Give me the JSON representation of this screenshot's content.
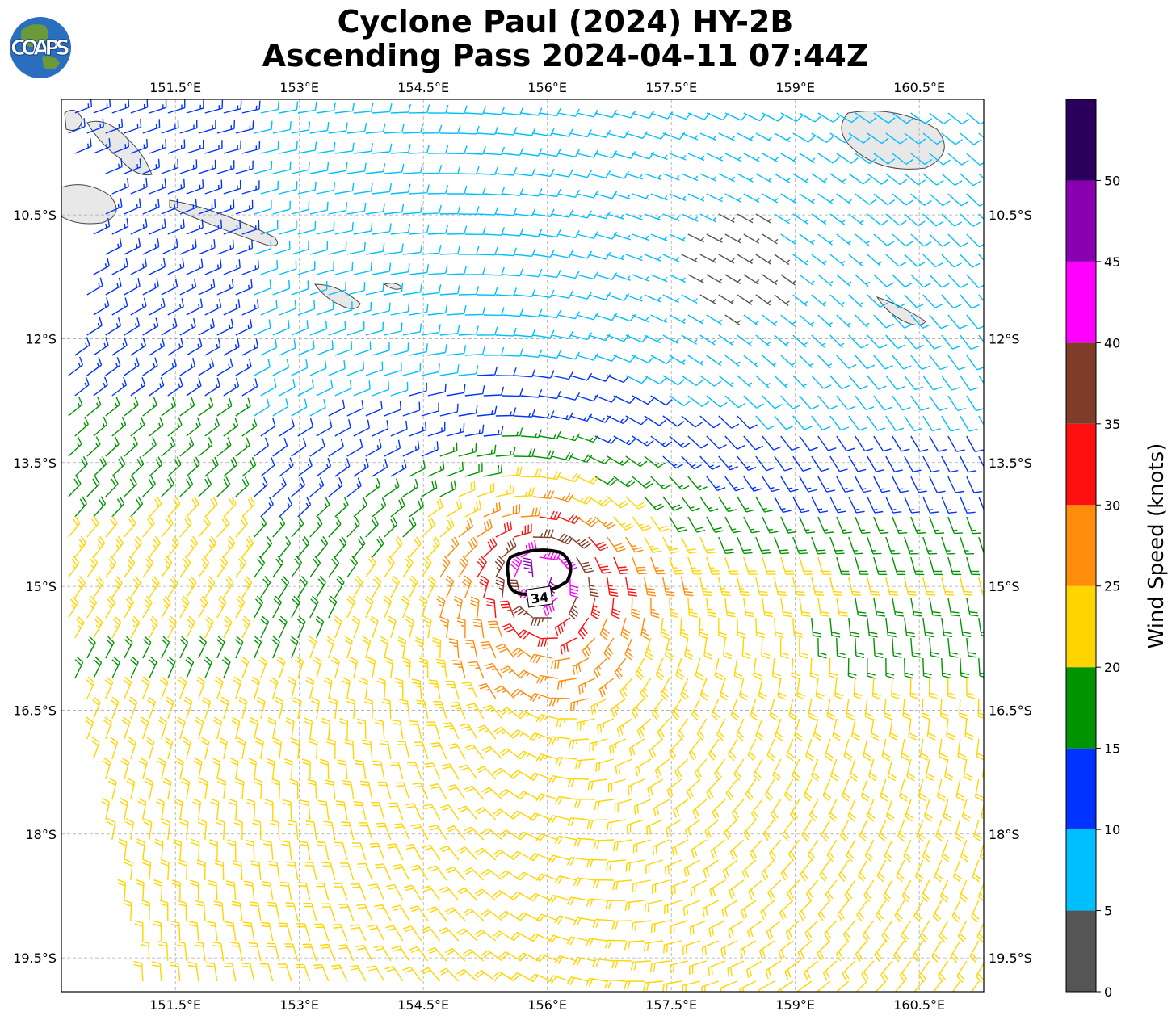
{
  "header": {
    "logo": "COAPS",
    "title_lines": [
      "Cyclone Paul (2024) HY-2B",
      "Ascending Pass 2024-04-11 07:44Z"
    ]
  },
  "map": {
    "xlim": [
      150.12,
      161.28
    ],
    "ylim": [
      -19.91,
      -9.1
    ],
    "lon_ticks": [
      {
        "value": 151.5,
        "label": "151.5°E"
      },
      {
        "value": 153,
        "label": "153°E"
      },
      {
        "value": 154.5,
        "label": "154.5°E"
      },
      {
        "value": 156,
        "label": "156°E"
      },
      {
        "value": 157.5,
        "label": "157.5°E"
      },
      {
        "value": 159,
        "label": "159°E"
      },
      {
        "value": 160.5,
        "label": "160.5°E"
      }
    ],
    "lat_ticks": [
      {
        "value": -10.5,
        "label": "10.5°S"
      },
      {
        "value": -12,
        "label": "12°S"
      },
      {
        "value": -13.5,
        "label": "13.5°S"
      },
      {
        "value": -15,
        "label": "15°S"
      },
      {
        "value": -16.5,
        "label": "16.5°S"
      },
      {
        "value": -18,
        "label": "18°S"
      },
      {
        "value": -19.5,
        "label": "19.5°S"
      }
    ],
    "contour_label": "34",
    "grid": true
  },
  "colorbar": {
    "label": "Wind Speed (knots)",
    "lim": [
      0,
      55
    ],
    "levels": [
      0,
      5,
      10,
      15,
      20,
      25,
      30,
      35,
      40,
      45,
      50,
      55
    ],
    "colors": [
      "#555555",
      "#00bfff",
      "#0033ff",
      "#009400",
      "#ffd500",
      "#ff8c0a",
      "#ff1010",
      "#7f3c28",
      "#ff00ff",
      "#8800b0",
      "#2a005c"
    ],
    "ticks": [
      0,
      5,
      10,
      15,
      20,
      25,
      30,
      35,
      40,
      45,
      50
    ]
  }
}
